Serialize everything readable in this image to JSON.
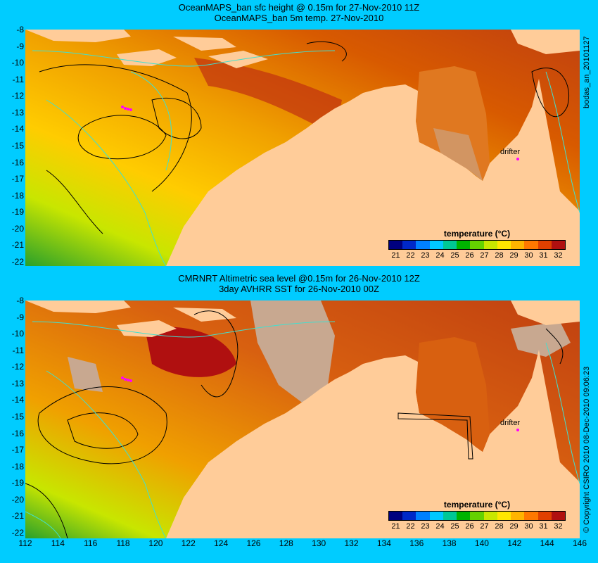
{
  "top_panel": {
    "title_line1": "OceanMAPS_ban sfc height @ 0.15m for 27-Nov-2010 11Z",
    "title_line2": "OceanMAPS_ban 5m temp. 27-Nov-2010",
    "side_label": "bodas_an_20101127"
  },
  "bottom_panel": {
    "title_line1": "CMRNRT Altimetric sea level  @0.15m  for 26-Nov-2010 12Z",
    "title_line2": "3day AVHRR SST for 26-Nov-2010 00Z",
    "side_label": "© Copyright CSIRO 2010   08-Dec-2010 09:06:23"
  },
  "drifter_label": "drifter",
  "y_ticks": [
    "-8",
    "-9",
    "-10",
    "-11",
    "-12",
    "-13",
    "-14",
    "-15",
    "-16",
    "-17",
    "-18",
    "-19",
    "-20",
    "-21",
    "-22"
  ],
  "x_ticks": [
    "112",
    "114",
    "116",
    "118",
    "120",
    "122",
    "124",
    "126",
    "128",
    "130",
    "132",
    "134",
    "136",
    "138",
    "140",
    "142",
    "144",
    "146"
  ],
  "legend": {
    "title": "temperature (°C)",
    "ticks": [
      "21",
      "22",
      "23",
      "24",
      "25",
      "26",
      "27",
      "28",
      "29",
      "30",
      "31",
      "32"
    ],
    "colors": [
      "#00007f",
      "#0028c8",
      "#0080ff",
      "#00c8ff",
      "#00c896",
      "#00b400",
      "#64d200",
      "#c8e600",
      "#ffe600",
      "#ffb400",
      "#ff7800",
      "#e04000",
      "#b01010"
    ]
  },
  "colors": {
    "background": "#00ccff",
    "land": "#ffcc99",
    "no_data": "#c8a890",
    "contour_cyan": "#40e0d0",
    "contour_black": "#000000",
    "drifter": "#ff00ff"
  }
}
